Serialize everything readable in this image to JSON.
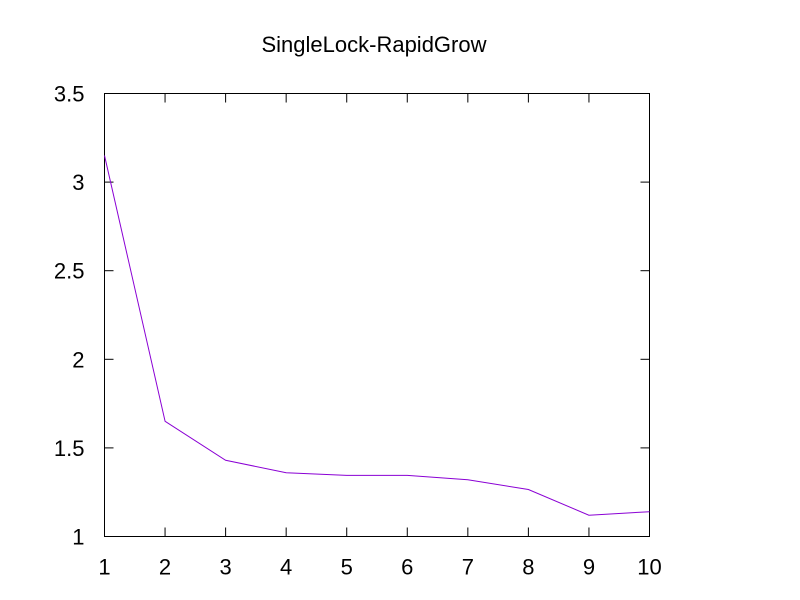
{
  "chart_data": {
    "type": "line",
    "title": "SingleLock-RapidGrow",
    "xlabel": "",
    "ylabel": "",
    "x": [
      1,
      2,
      3,
      4,
      5,
      6,
      7,
      8,
      9,
      10
    ],
    "series": [
      {
        "name": "",
        "color": "#8a00d4",
        "values": [
          3.15,
          1.65,
          1.43,
          1.36,
          1.345,
          1.345,
          1.32,
          1.265,
          1.12,
          1.14
        ]
      }
    ],
    "xlim": [
      1,
      10
    ],
    "ylim": [
      1,
      3.5
    ],
    "xticks": [
      "1",
      "2",
      "3",
      "4",
      "5",
      "6",
      "7",
      "8",
      "9",
      "10"
    ],
    "yticks": [
      "1",
      "1.5",
      "2",
      "2.5",
      "3",
      "3.5"
    ],
    "grid": false,
    "legend": "none"
  }
}
